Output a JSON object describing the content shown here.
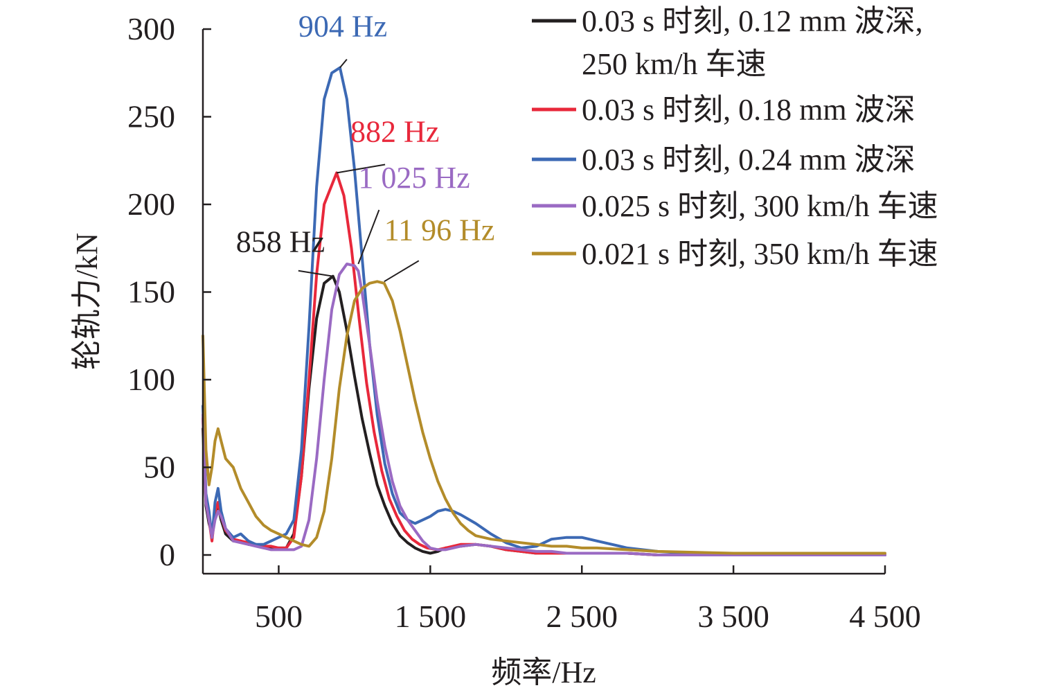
{
  "chart_data": {
    "type": "line",
    "xlabel": "频率/Hz",
    "ylabel": "轮轨力/kN",
    "xlim": [
      0,
      4500
    ],
    "ylim": [
      0,
      300
    ],
    "x_ticks": [
      500,
      1500,
      2500,
      3500,
      4500
    ],
    "x_tick_labels": [
      "500",
      "1 500",
      "2 500",
      "3 500",
      "4 500"
    ],
    "y_ticks": [
      0,
      50,
      100,
      150,
      200,
      250,
      300
    ],
    "y_tick_labels": [
      "0",
      "50",
      "100",
      "150",
      "200",
      "250",
      "300"
    ],
    "grid": false,
    "legend_position": "top-right",
    "series": [
      {
        "name": "0.03 s 时刻, 0.12 mm 波深, 250 km/h 车速",
        "legend_lines": [
          "0.03 s 时刻, 0.12 mm 波深,",
          "250 km/h 车速"
        ],
        "color": "#231f20",
        "x": [
          0,
          20,
          40,
          60,
          80,
          100,
          120,
          150,
          200,
          250,
          300,
          350,
          400,
          450,
          500,
          550,
          600,
          650,
          700,
          750,
          800,
          858,
          900,
          950,
          1000,
          1050,
          1100,
          1150,
          1200,
          1250,
          1300,
          1350,
          1400,
          1450,
          1500,
          1550,
          1600,
          1700,
          1800,
          1900,
          2000,
          2100,
          2200,
          2300,
          2400,
          2500,
          2600,
          2800,
          3000,
          3500,
          4000,
          4500
        ],
        "y": [
          72,
          28,
          18,
          12,
          22,
          28,
          20,
          12,
          8,
          8,
          6,
          6,
          5,
          4,
          4,
          4,
          12,
          45,
          95,
          135,
          155,
          159,
          150,
          128,
          102,
          78,
          58,
          40,
          28,
          18,
          11,
          7,
          4,
          2,
          1,
          2,
          4,
          5,
          6,
          5,
          3,
          2,
          1,
          1,
          1,
          1,
          1,
          1,
          0,
          0,
          0,
          0
        ],
        "peak_label": "858 Hz",
        "peak_x": 858,
        "peak_y": 159
      },
      {
        "name": "0.03 s 时刻, 0.18 mm 波深",
        "legend_lines": [
          "0.03 s 时刻, 0.18 mm 波深"
        ],
        "color": "#e8283b",
        "x": [
          0,
          20,
          40,
          60,
          80,
          100,
          120,
          150,
          200,
          250,
          300,
          350,
          400,
          450,
          500,
          550,
          600,
          650,
          700,
          750,
          800,
          882,
          930,
          980,
          1030,
          1080,
          1130,
          1180,
          1230,
          1280,
          1330,
          1380,
          1430,
          1480,
          1550,
          1600,
          1700,
          1800,
          1900,
          2000,
          2100,
          2200,
          2300,
          2400,
          2500,
          2600,
          2800,
          3000,
          3500,
          4000,
          4500
        ],
        "y": [
          78,
          30,
          20,
          8,
          24,
          30,
          22,
          14,
          9,
          8,
          7,
          6,
          5,
          5,
          4,
          4,
          10,
          45,
          100,
          160,
          200,
          218,
          205,
          175,
          135,
          98,
          70,
          48,
          32,
          22,
          14,
          9,
          6,
          4,
          3,
          4,
          6,
          6,
          5,
          3,
          2,
          1,
          1,
          1,
          1,
          1,
          1,
          0,
          0,
          0,
          0
        ],
        "peak_label": "882 Hz",
        "peak_x": 882,
        "peak_y": 218
      },
      {
        "name": "0.03 s 时刻, 0.24 mm 波深",
        "legend_lines": [
          "0.03 s 时刻, 0.24 mm 波深"
        ],
        "color": "#3c69b4",
        "x": [
          0,
          20,
          40,
          60,
          80,
          100,
          120,
          150,
          200,
          250,
          300,
          350,
          400,
          450,
          500,
          550,
          600,
          650,
          700,
          750,
          800,
          850,
          904,
          950,
          1000,
          1050,
          1100,
          1150,
          1200,
          1250,
          1300,
          1350,
          1400,
          1450,
          1500,
          1550,
          1600,
          1650,
          1700,
          1800,
          1900,
          2000,
          2100,
          2200,
          2250,
          2300,
          2400,
          2500,
          2600,
          2700,
          2800,
          2900,
          3000,
          3200,
          3500,
          4000,
          4500
        ],
        "y": [
          85,
          35,
          25,
          10,
          30,
          38,
          25,
          15,
          10,
          12,
          8,
          6,
          6,
          8,
          10,
          12,
          20,
          60,
          130,
          210,
          260,
          275,
          278,
          260,
          220,
          170,
          120,
          80,
          52,
          35,
          24,
          20,
          18,
          20,
          22,
          25,
          26,
          25,
          23,
          18,
          12,
          7,
          4,
          5,
          7,
          9,
          10,
          10,
          8,
          6,
          4,
          3,
          2,
          1,
          1,
          0,
          0
        ],
        "peak_label": "904 Hz",
        "peak_x": 904,
        "peak_y": 278
      },
      {
        "name": "0.025 s 时刻, 300 km/h 车速",
        "legend_lines": [
          "0.025 s 时刻, 300 km/h 车速"
        ],
        "color": "#9a6ac3",
        "x": [
          0,
          20,
          40,
          60,
          80,
          100,
          120,
          150,
          200,
          250,
          300,
          350,
          400,
          450,
          500,
          550,
          600,
          650,
          700,
          750,
          800,
          850,
          900,
          950,
          1000,
          1025,
          1050,
          1100,
          1150,
          1200,
          1250,
          1300,
          1350,
          1400,
          1450,
          1500,
          1550,
          1600,
          1650,
          1700,
          1800,
          1900,
          2000,
          2100,
          2200,
          2300,
          2400,
          2500,
          2600,
          2800,
          3000,
          3500,
          4000,
          4500
        ],
        "y": [
          80,
          30,
          20,
          10,
          20,
          25,
          22,
          15,
          8,
          7,
          6,
          5,
          4,
          3,
          3,
          3,
          3,
          5,
          20,
          55,
          100,
          140,
          160,
          166,
          165,
          162,
          150,
          120,
          88,
          62,
          42,
          28,
          20,
          14,
          8,
          4,
          3,
          3,
          4,
          5,
          6,
          5,
          4,
          3,
          2,
          2,
          1,
          1,
          1,
          1,
          0,
          0,
          0,
          0
        ],
        "peak_label": "1 025 Hz",
        "peak_x": 1025,
        "peak_y": 166
      },
      {
        "name": "0.021 s 时刻, 350 km/h 车速",
        "legend_lines": [
          "0.021 s 时刻, 350 km/h 车速"
        ],
        "color": "#b38c2a",
        "x": [
          0,
          20,
          40,
          60,
          80,
          100,
          120,
          150,
          200,
          250,
          300,
          350,
          400,
          450,
          500,
          550,
          600,
          650,
          700,
          750,
          800,
          850,
          900,
          950,
          1000,
          1050,
          1100,
          1150,
          1196,
          1250,
          1300,
          1350,
          1400,
          1450,
          1500,
          1550,
          1600,
          1650,
          1700,
          1750,
          1800,
          1900,
          2000,
          2100,
          2200,
          2300,
          2400,
          2500,
          2600,
          2800,
          3000,
          3500,
          4000,
          4500
        ],
        "y": [
          125,
          60,
          40,
          50,
          65,
          72,
          65,
          55,
          50,
          38,
          30,
          22,
          17,
          14,
          12,
          10,
          8,
          6,
          5,
          10,
          25,
          55,
          95,
          125,
          145,
          152,
          155,
          156,
          155,
          145,
          128,
          108,
          88,
          70,
          55,
          42,
          32,
          24,
          18,
          14,
          11,
          9,
          8,
          7,
          6,
          5,
          5,
          4,
          4,
          3,
          2,
          1,
          1,
          1
        ],
        "peak_label": "11 96 Hz",
        "peak_x": 1196,
        "peak_y": 156
      }
    ]
  }
}
